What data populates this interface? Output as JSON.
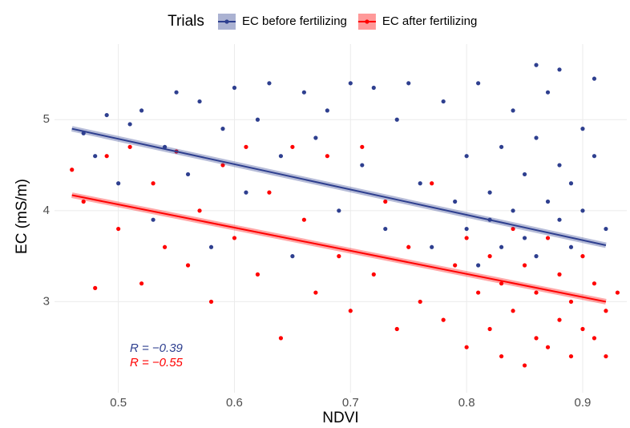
{
  "chart_data": {
    "type": "scatter",
    "x_label": "NDVI",
    "y_label": "EC (mS/m)",
    "legend_title": "Trials",
    "xlim": [
      0.445,
      0.938
    ],
    "ylim": [
      2.0,
      5.83
    ],
    "xticks": [
      0.5,
      0.6,
      0.7,
      0.8,
      0.9
    ],
    "yticks": [
      3,
      4,
      5
    ],
    "grid": true,
    "series": [
      {
        "name": "EC before fertilizing",
        "color": "#2e3f8f",
        "x": [
          0.47,
          0.48,
          0.49,
          0.5,
          0.51,
          0.52,
          0.53,
          0.54,
          0.55,
          0.56,
          0.57,
          0.58,
          0.59,
          0.6,
          0.61,
          0.62,
          0.63,
          0.64,
          0.65,
          0.66,
          0.67,
          0.68,
          0.69,
          0.7,
          0.71,
          0.72,
          0.73,
          0.74,
          0.75,
          0.76,
          0.77,
          0.78,
          0.79,
          0.8,
          0.8,
          0.81,
          0.81,
          0.82,
          0.82,
          0.83,
          0.83,
          0.84,
          0.84,
          0.85,
          0.85,
          0.86,
          0.86,
          0.86,
          0.87,
          0.87,
          0.88,
          0.88,
          0.88,
          0.89,
          0.89,
          0.9,
          0.9,
          0.91,
          0.91,
          0.92
        ],
        "values": [
          4.85,
          4.6,
          5.05,
          4.3,
          4.95,
          5.1,
          3.9,
          4.7,
          5.3,
          4.4,
          5.2,
          3.6,
          4.9,
          5.35,
          4.2,
          5.0,
          5.4,
          4.6,
          3.5,
          5.3,
          4.8,
          5.1,
          4.0,
          5.4,
          4.5,
          5.35,
          3.8,
          5.0,
          5.4,
          4.3,
          3.6,
          5.2,
          4.1,
          3.8,
          4.6,
          5.4,
          3.4,
          4.2,
          3.9,
          4.7,
          3.6,
          5.1,
          4.0,
          4.4,
          3.7,
          5.6,
          4.8,
          3.5,
          4.1,
          5.3,
          4.5,
          3.9,
          5.55,
          4.3,
          3.6,
          4.9,
          4.0,
          5.45,
          4.6,
          3.8
        ],
        "fit": {
          "x": [
            0.46,
            0.92
          ],
          "values": [
            4.9,
            3.62
          ]
        },
        "annotation": "R = −0.39"
      },
      {
        "name": "EC after fertilizing",
        "color": "#ff0000",
        "x": [
          0.46,
          0.47,
          0.48,
          0.49,
          0.5,
          0.51,
          0.52,
          0.53,
          0.54,
          0.55,
          0.56,
          0.57,
          0.58,
          0.59,
          0.6,
          0.61,
          0.62,
          0.63,
          0.64,
          0.65,
          0.66,
          0.67,
          0.68,
          0.69,
          0.7,
          0.71,
          0.72,
          0.73,
          0.74,
          0.75,
          0.76,
          0.77,
          0.78,
          0.79,
          0.8,
          0.8,
          0.81,
          0.82,
          0.82,
          0.83,
          0.83,
          0.84,
          0.84,
          0.85,
          0.85,
          0.86,
          0.86,
          0.87,
          0.87,
          0.88,
          0.88,
          0.89,
          0.89,
          0.9,
          0.9,
          0.91,
          0.91,
          0.92,
          0.92,
          0.93
        ],
        "values": [
          4.45,
          4.1,
          3.15,
          4.6,
          3.8,
          4.7,
          3.2,
          4.3,
          3.6,
          4.65,
          3.4,
          4.0,
          3.0,
          4.5,
          3.7,
          4.7,
          3.3,
          4.2,
          2.6,
          4.7,
          3.9,
          3.1,
          4.6,
          3.5,
          2.9,
          4.7,
          3.3,
          4.1,
          2.7,
          3.6,
          3.0,
          4.3,
          2.8,
          3.4,
          2.5,
          3.7,
          3.1,
          2.7,
          3.5,
          2.4,
          3.2,
          3.8,
          2.9,
          2.3,
          3.4,
          2.6,
          3.1,
          3.7,
          2.5,
          2.8,
          3.3,
          2.4,
          3.0,
          2.7,
          3.5,
          2.6,
          3.2,
          2.9,
          2.4,
          3.1
        ],
        "fit": {
          "x": [
            0.46,
            0.92
          ],
          "values": [
            4.17,
            3.0
          ]
        },
        "annotation": "R = −0.55"
      }
    ]
  }
}
